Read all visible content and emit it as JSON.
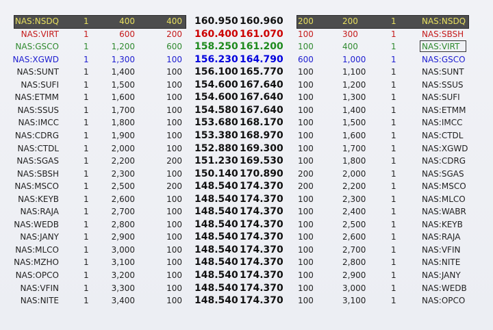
{
  "level_colors": {
    "level0": "#e8e060",
    "level1": "#c41a1a",
    "level2": "#2f8a2f",
    "level3": "#1c1cd0",
    "other": "#222222"
  },
  "selected_ask_row": 2,
  "rows": [
    {
      "bid_mm": "NAS:NSDQ",
      "bid_n": "1",
      "bid_cum": "400",
      "bid_size": "400",
      "bid": "160.950",
      "ask": "160.960",
      "ask_size": "200",
      "ask_cum": "200",
      "ask_n": "1",
      "ask_mm": "NAS:NSDQ"
    },
    {
      "bid_mm": "NAS:VIRT",
      "bid_n": "1",
      "bid_cum": "600",
      "bid_size": "200",
      "bid": "160.400",
      "ask": "161.070",
      "ask_size": "100",
      "ask_cum": "300",
      "ask_n": "1",
      "ask_mm": "NAS:SBSH"
    },
    {
      "bid_mm": "NAS:GSCO",
      "bid_n": "1",
      "bid_cum": "1,200",
      "bid_size": "600",
      "bid": "158.250",
      "ask": "161.200",
      "ask_size": "100",
      "ask_cum": "400",
      "ask_n": "1",
      "ask_mm": "NAS:VIRT"
    },
    {
      "bid_mm": "NAS:XGWD",
      "bid_n": "1",
      "bid_cum": "1,300",
      "bid_size": "100",
      "bid": "156.230",
      "ask": "164.790",
      "ask_size": "600",
      "ask_cum": "1,000",
      "ask_n": "1",
      "ask_mm": "NAS:GSCO"
    },
    {
      "bid_mm": "NAS:SUNT",
      "bid_n": "1",
      "bid_cum": "1,400",
      "bid_size": "100",
      "bid": "156.100",
      "ask": "165.770",
      "ask_size": "100",
      "ask_cum": "1,100",
      "ask_n": "1",
      "ask_mm": "NAS:SUNT"
    },
    {
      "bid_mm": "NAS:SUFI",
      "bid_n": "1",
      "bid_cum": "1,500",
      "bid_size": "100",
      "bid": "154.600",
      "ask": "167.640",
      "ask_size": "100",
      "ask_cum": "1,200",
      "ask_n": "1",
      "ask_mm": "NAS:SSUS"
    },
    {
      "bid_mm": "NAS:ETMM",
      "bid_n": "1",
      "bid_cum": "1,600",
      "bid_size": "100",
      "bid": "154.600",
      "ask": "167.640",
      "ask_size": "100",
      "ask_cum": "1,300",
      "ask_n": "1",
      "ask_mm": "NAS:SUFI"
    },
    {
      "bid_mm": "NAS:SSUS",
      "bid_n": "1",
      "bid_cum": "1,700",
      "bid_size": "100",
      "bid": "154.580",
      "ask": "167.640",
      "ask_size": "100",
      "ask_cum": "1,400",
      "ask_n": "1",
      "ask_mm": "NAS:ETMM"
    },
    {
      "bid_mm": "NAS:IMCC",
      "bid_n": "1",
      "bid_cum": "1,800",
      "bid_size": "100",
      "bid": "153.680",
      "ask": "168.170",
      "ask_size": "100",
      "ask_cum": "1,500",
      "ask_n": "1",
      "ask_mm": "NAS:IMCC"
    },
    {
      "bid_mm": "NAS:CDRG",
      "bid_n": "1",
      "bid_cum": "1,900",
      "bid_size": "100",
      "bid": "153.380",
      "ask": "168.970",
      "ask_size": "100",
      "ask_cum": "1,600",
      "ask_n": "1",
      "ask_mm": "NAS:CTDL"
    },
    {
      "bid_mm": "NAS:CTDL",
      "bid_n": "1",
      "bid_cum": "2,000",
      "bid_size": "100",
      "bid": "152.880",
      "ask": "169.300",
      "ask_size": "100",
      "ask_cum": "1,700",
      "ask_n": "1",
      "ask_mm": "NAS:XGWD"
    },
    {
      "bid_mm": "NAS:SGAS",
      "bid_n": "1",
      "bid_cum": "2,200",
      "bid_size": "200",
      "bid": "151.230",
      "ask": "169.530",
      "ask_size": "100",
      "ask_cum": "1,800",
      "ask_n": "1",
      "ask_mm": "NAS:CDRG"
    },
    {
      "bid_mm": "NAS:SBSH",
      "bid_n": "1",
      "bid_cum": "2,300",
      "bid_size": "100",
      "bid": "150.140",
      "ask": "170.890",
      "ask_size": "200",
      "ask_cum": "2,000",
      "ask_n": "1",
      "ask_mm": "NAS:SGAS"
    },
    {
      "bid_mm": "NAS:MSCO",
      "bid_n": "1",
      "bid_cum": "2,500",
      "bid_size": "200",
      "bid": "148.540",
      "ask": "174.370",
      "ask_size": "200",
      "ask_cum": "2,200",
      "ask_n": "1",
      "ask_mm": "NAS:MSCO"
    },
    {
      "bid_mm": "NAS:KEYB",
      "bid_n": "1",
      "bid_cum": "2,600",
      "bid_size": "100",
      "bid": "148.540",
      "ask": "174.370",
      "ask_size": "100",
      "ask_cum": "2,300",
      "ask_n": "1",
      "ask_mm": "NAS:MLCO"
    },
    {
      "bid_mm": "NAS:RAJA",
      "bid_n": "1",
      "bid_cum": "2,700",
      "bid_size": "100",
      "bid": "148.540",
      "ask": "174.370",
      "ask_size": "100",
      "ask_cum": "2,400",
      "ask_n": "1",
      "ask_mm": "NAS:WABR"
    },
    {
      "bid_mm": "NAS:WEDB",
      "bid_n": "1",
      "bid_cum": "2,800",
      "bid_size": "100",
      "bid": "148.540",
      "ask": "174.370",
      "ask_size": "100",
      "ask_cum": "2,500",
      "ask_n": "1",
      "ask_mm": "NAS:KEYB"
    },
    {
      "bid_mm": "NAS:JANY",
      "bid_n": "1",
      "bid_cum": "2,900",
      "bid_size": "100",
      "bid": "148.540",
      "ask": "174.370",
      "ask_size": "100",
      "ask_cum": "2,600",
      "ask_n": "1",
      "ask_mm": "NAS:RAJA"
    },
    {
      "bid_mm": "NAS:MLCO",
      "bid_n": "1",
      "bid_cum": "3,000",
      "bid_size": "100",
      "bid": "148.540",
      "ask": "174.370",
      "ask_size": "100",
      "ask_cum": "2,700",
      "ask_n": "1",
      "ask_mm": "NAS:VFIN"
    },
    {
      "bid_mm": "NAS:MZHO",
      "bid_n": "1",
      "bid_cum": "3,100",
      "bid_size": "100",
      "bid": "148.540",
      "ask": "174.370",
      "ask_size": "100",
      "ask_cum": "2,800",
      "ask_n": "1",
      "ask_mm": "NAS:NITE"
    },
    {
      "bid_mm": "NAS:OPCO",
      "bid_n": "1",
      "bid_cum": "3,200",
      "bid_size": "100",
      "bid": "148.540",
      "ask": "174.370",
      "ask_size": "100",
      "ask_cum": "2,900",
      "ask_n": "1",
      "ask_mm": "NAS:JANY"
    },
    {
      "bid_mm": "NAS:VFIN",
      "bid_n": "1",
      "bid_cum": "3,300",
      "bid_size": "100",
      "bid": "148.540",
      "ask": "174.370",
      "ask_size": "100",
      "ask_cum": "3,000",
      "ask_n": "1",
      "ask_mm": "NAS:WEDB"
    },
    {
      "bid_mm": "NAS:NITE",
      "bid_n": "1",
      "bid_cum": "3,400",
      "bid_size": "100",
      "bid": "148.540",
      "ask": "174.370",
      "ask_size": "100",
      "ask_cum": "3,100",
      "ask_n": "1",
      "ask_mm": "NAS:OPCO"
    }
  ]
}
